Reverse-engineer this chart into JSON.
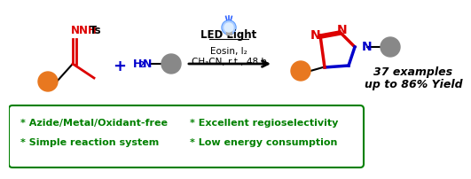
{
  "background_color": "#ffffff",
  "box_color": "#008000",
  "bullet_lines": [
    [
      "* Azide/Metal/Oxidant-free",
      "* Excellent regioselectivity"
    ],
    [
      "* Simple reaction system",
      "* Low energy consumption"
    ]
  ],
  "bullet_fontsize": 8.0,
  "reaction_above": "LED Light",
  "reaction_below1": "Eosin, I₂",
  "reaction_below2": "CH₃CN, r.t., 48 h",
  "plus_color": "#0000cc",
  "result_text1": "37 examples",
  "result_text2": "up to 86% Yield",
  "amine_color": "#0000cc",
  "nnh_color": "#dd0000",
  "ts_color": "#000000",
  "ring_red": "#dd0000",
  "ring_blue": "#0000cc",
  "orange_color": "#e87820",
  "gray_color": "#888888",
  "green_color": "#008000",
  "black": "#000000"
}
